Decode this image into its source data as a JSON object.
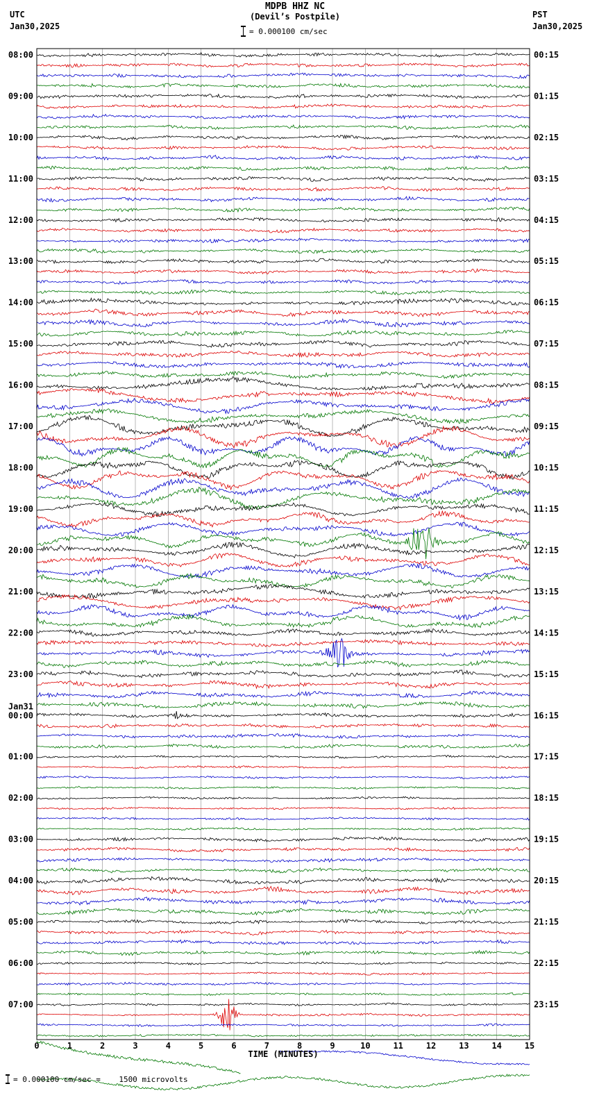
{
  "header": {
    "title": "MDPB HHZ NC",
    "subtitle": "(Devil’s Postpile)",
    "left_tz": "UTC",
    "left_date": "Jan30,2025",
    "right_tz": "PST",
    "right_date": "Jan30,2025",
    "scale_text": "= 0.000100 cm/sec"
  },
  "footer": {
    "xlabel": "TIME (MINUTES)",
    "scale_note": "= 0.000100 cm/sec =    1500 microvolts"
  },
  "chart_data": {
    "type": "line",
    "title": "MDPB HHZ NC (Devil’s Postpile) helicorder",
    "x_axis": {
      "label": "TIME (MINUTES)",
      "min": 0,
      "max": 15
    },
    "x_ticks": [
      0,
      1,
      2,
      3,
      4,
      5,
      6,
      7,
      8,
      9,
      10,
      11,
      12,
      13,
      14,
      15
    ],
    "minutes_per_line": 15,
    "lines_per_hour": 4,
    "trace_colors": [
      "#000000",
      "#dd0000",
      "#0000cc",
      "#007700"
    ],
    "grid_color": "#8a8a8a",
    "amplitude_scale": "0.000100 cm/sec = 1500 microvolts",
    "date_break": {
      "label": "Jan31",
      "before_utc": "00:00"
    },
    "hours": [
      {
        "utc": "08:00",
        "pst": "00:15",
        "activity": "moderate"
      },
      {
        "utc": "09:00",
        "pst": "01:15",
        "activity": "moderate"
      },
      {
        "utc": "10:00",
        "pst": "02:15",
        "activity": "moderate"
      },
      {
        "utc": "11:00",
        "pst": "03:15",
        "activity": "moderate"
      },
      {
        "utc": "12:00",
        "pst": "04:15",
        "activity": "moderate"
      },
      {
        "utc": "13:00",
        "pst": "05:15",
        "activity": "moderate"
      },
      {
        "utc": "14:00",
        "pst": "06:15",
        "activity": "active"
      },
      {
        "utc": "15:00",
        "pst": "07:15",
        "activity": "active"
      },
      {
        "utc": "16:00",
        "pst": "08:15",
        "activity": "high"
      },
      {
        "utc": "17:00",
        "pst": "09:15",
        "activity": "extreme"
      },
      {
        "utc": "18:00",
        "pst": "10:15",
        "activity": "extreme"
      },
      {
        "utc": "19:00",
        "pst": "11:15",
        "activity": "high"
      },
      {
        "utc": "20:00",
        "pst": "12:15",
        "activity": "high"
      },
      {
        "utc": "21:00",
        "pst": "13:15",
        "activity": "high"
      },
      {
        "utc": "22:00",
        "pst": "14:15",
        "activity": "active"
      },
      {
        "utc": "23:00",
        "pst": "15:15",
        "activity": "active"
      },
      {
        "utc": "00:00",
        "pst": "16:15",
        "activity": "moderate"
      },
      {
        "utc": "01:00",
        "pst": "17:15",
        "activity": "calm"
      },
      {
        "utc": "02:00",
        "pst": "18:15",
        "activity": "calm"
      },
      {
        "utc": "03:00",
        "pst": "19:15",
        "activity": "moderate"
      },
      {
        "utc": "04:00",
        "pst": "20:15",
        "activity": "active"
      },
      {
        "utc": "05:00",
        "pst": "21:15",
        "activity": "moderate"
      },
      {
        "utc": "06:00",
        "pst": "22:15",
        "activity": "calm"
      },
      {
        "utc": "07:00",
        "pst": "23:15",
        "activity": "calm"
      }
    ],
    "events": [
      {
        "utc": "19:00",
        "trace_color": "green",
        "minute": 11.7,
        "amplitude": 30,
        "width_min": 0.35
      },
      {
        "utc": "22:00",
        "trace_color": "blue",
        "minute": 9.2,
        "amplitude": 24,
        "width_min": 0.3
      },
      {
        "utc": "00:00",
        "trace_color": "black",
        "minute": 4.3,
        "amplitude": 9,
        "width_min": 0.12
      },
      {
        "utc": "07:00",
        "trace_color": "red",
        "minute": 5.8,
        "amplitude": 28,
        "width_min": 0.22
      }
    ],
    "overflow_traces": [
      {
        "color": "#007700",
        "y_start": 1500,
        "y_end": 1548,
        "from": 0,
        "to": 6.2,
        "hf": 2,
        "wobble": 4
      },
      {
        "color": "#0000cc",
        "y_start": 1512,
        "y_end": 1532,
        "from": 7.4,
        "to": 15,
        "hf": 1.2,
        "wobble": 3
      },
      {
        "color": "#007700",
        "y_start": 1562,
        "y_end": 1556,
        "from": 0,
        "to": 15,
        "hf": 1.6,
        "wobble": 8
      }
    ]
  }
}
